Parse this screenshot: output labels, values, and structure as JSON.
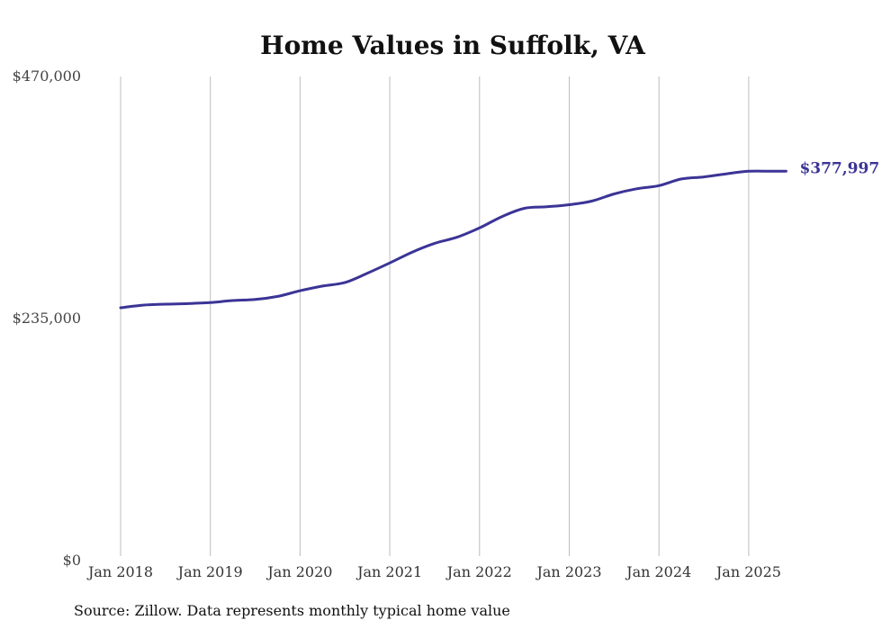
{
  "chart_data": {
    "type": "line",
    "title": "Home Values in Suffolk, VA",
    "source": "Source: Zillow. Data represents monthly typical home value",
    "xlabel": "",
    "ylabel": "",
    "ylim": [
      0,
      470000
    ],
    "y_ticks": [
      {
        "value": 0,
        "label": "$0"
      },
      {
        "value": 235000,
        "label": "$235,000"
      },
      {
        "value": 470000,
        "label": "$470,000"
      }
    ],
    "x_ticks": [
      {
        "year": 2018,
        "label": "Jan 2018"
      },
      {
        "year": 2019,
        "label": "Jan 2019"
      },
      {
        "year": 2020,
        "label": "Jan 2020"
      },
      {
        "year": 2021,
        "label": "Jan 2021"
      },
      {
        "year": 2022,
        "label": "Jan 2022"
      },
      {
        "year": 2023,
        "label": "Jan 2023"
      },
      {
        "year": 2024,
        "label": "Jan 2024"
      },
      {
        "year": 2025,
        "label": "Jan 2025"
      }
    ],
    "vertical_grid": true,
    "line_color": "#3b3496",
    "end_label": "$377,997",
    "series": [
      {
        "x": [
          "2018-01",
          "2018-04",
          "2018-07",
          "2018-10",
          "2019-01",
          "2019-04",
          "2019-07",
          "2019-10",
          "2020-01",
          "2020-04",
          "2020-07",
          "2020-10",
          "2021-01",
          "2021-04",
          "2021-07",
          "2021-10",
          "2022-01",
          "2022-04",
          "2022-07",
          "2022-10",
          "2023-01",
          "2023-04",
          "2023-07",
          "2023-10",
          "2024-01",
          "2024-04",
          "2024-07",
          "2024-10",
          "2025-01",
          "2025-04",
          "2025-06"
        ],
        "values": [
          245500,
          248000,
          249000,
          249500,
          250500,
          252500,
          253500,
          256500,
          262000,
          266500,
          270000,
          279000,
          289000,
          299500,
          308000,
          314000,
          323000,
          334000,
          342000,
          343500,
          345500,
          349000,
          356000,
          361000,
          364000,
          370500,
          372500,
          375500,
          378000,
          378000,
          377997
        ]
      }
    ]
  }
}
